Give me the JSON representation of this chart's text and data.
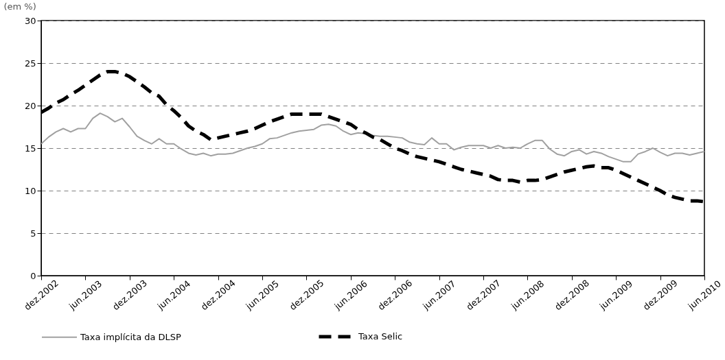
{
  "chart_data": {
    "type": "line",
    "ylabel": "(em %)",
    "categories": [
      "dez.2002",
      null,
      null,
      null,
      null,
      null,
      "jun.2003",
      null,
      null,
      null,
      null,
      null,
      "dez.2003",
      null,
      null,
      null,
      null,
      null,
      "jun.2004",
      null,
      null,
      null,
      null,
      null,
      "dez.2004",
      null,
      null,
      null,
      null,
      null,
      "jun.2005",
      null,
      null,
      null,
      null,
      null,
      "dez.2005",
      null,
      null,
      null,
      null,
      null,
      "jun.2006",
      null,
      null,
      null,
      null,
      null,
      "dez.2006",
      null,
      null,
      null,
      null,
      null,
      "jun.2007",
      null,
      null,
      null,
      null,
      null,
      "dez.2007",
      null,
      null,
      null,
      null,
      null,
      "jun.2008",
      null,
      null,
      null,
      null,
      null,
      "dez.2008",
      null,
      null,
      null,
      null,
      null,
      "jun.2009",
      null,
      null,
      null,
      null,
      null,
      "dez.2009",
      null,
      null,
      null,
      null,
      null,
      "jun.2010"
    ],
    "series": [
      {
        "name": "Taxa implícita da DLSP",
        "color": "#a0a0a0",
        "line_style": "solid",
        "values": [
          15.5,
          16.3,
          16.9,
          17.3,
          16.9,
          17.3,
          17.3,
          18.5,
          19.1,
          18.7,
          18.1,
          18.5,
          17.5,
          16.4,
          15.9,
          15.5,
          16.1,
          15.5,
          15.5,
          14.9,
          14.4,
          14.2,
          14.4,
          14.1,
          14.3,
          14.3,
          14.4,
          14.7,
          15.0,
          15.2,
          15.5,
          16.1,
          16.2,
          16.5,
          16.8,
          17.0,
          17.1,
          17.2,
          17.7,
          17.8,
          17.6,
          17.0,
          16.6,
          16.8,
          16.7,
          16.5,
          16.4,
          16.4,
          16.3,
          16.2,
          15.7,
          15.5,
          15.4,
          16.2,
          15.5,
          15.5,
          14.8,
          15.1,
          15.3,
          15.3,
          15.3,
          15.0,
          15.3,
          15.0,
          15.1,
          15.0,
          15.5,
          15.9,
          15.9,
          14.9,
          14.3,
          14.1,
          14.6,
          14.8,
          14.3,
          14.6,
          14.4,
          14.0,
          13.7,
          13.4,
          13.4,
          14.3,
          14.6,
          15.0,
          14.5,
          14.1,
          14.4,
          14.4,
          14.2,
          14.4,
          14.6
        ]
      },
      {
        "name": "Taxa Selic",
        "color": "#000000",
        "line_style": "dashed",
        "values": [
          19.2,
          19.7,
          20.3,
          20.7,
          21.3,
          21.8,
          22.4,
          23.0,
          23.6,
          24.0,
          24.0,
          23.8,
          23.4,
          22.8,
          22.2,
          21.5,
          21.1,
          20.1,
          19.4,
          18.6,
          17.6,
          17.0,
          16.6,
          16.0,
          16.2,
          16.4,
          16.6,
          16.8,
          17.0,
          17.3,
          17.7,
          18.1,
          18.4,
          18.7,
          19.0,
          19.0,
          19.0,
          19.0,
          19.0,
          18.7,
          18.4,
          18.1,
          17.8,
          17.2,
          16.8,
          16.3,
          16.0,
          15.5,
          15.0,
          14.7,
          14.3,
          14.0,
          13.8,
          13.6,
          13.4,
          13.1,
          12.8,
          12.5,
          12.3,
          12.1,
          11.9,
          11.7,
          11.3,
          11.2,
          11.2,
          11.0,
          11.2,
          11.2,
          11.3,
          11.6,
          11.9,
          12.2,
          12.4,
          12.6,
          12.8,
          12.9,
          12.7,
          12.7,
          12.4,
          12.0,
          11.6,
          11.2,
          10.8,
          10.4,
          10.0,
          9.5,
          9.2,
          9.0,
          8.8,
          8.8,
          8.7
        ]
      }
    ],
    "ylim": [
      0,
      30
    ],
    "yticks": [
      0,
      5,
      10,
      15,
      20,
      25,
      30
    ],
    "grid": "y",
    "legend": "bottom"
  }
}
